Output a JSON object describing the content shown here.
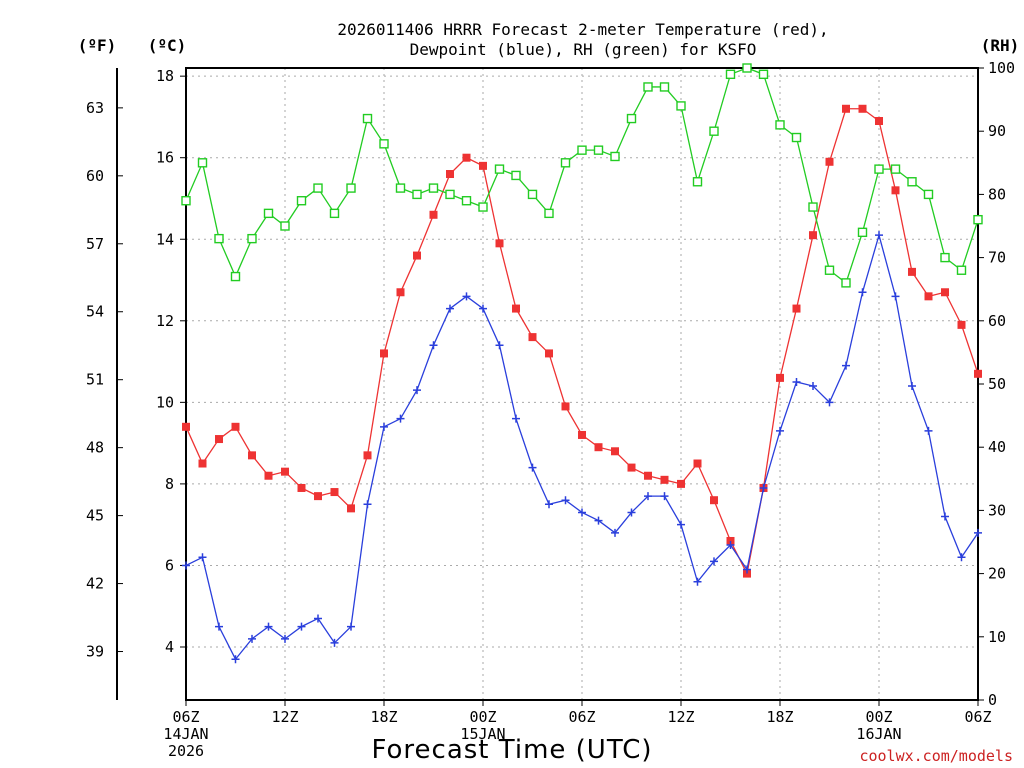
{
  "title_line1": "2026011406 HRRR Forecast 2-meter Temperature (red),",
  "title_line2": "Dewpoint (blue), RH (green) for KSFO",
  "unit_f": "(ºF)",
  "unit_c": "(ºC)",
  "unit_rh": "(RH)",
  "xlabel": "Forecast Time (UTC)",
  "credit": "coolwx.com/models",
  "x_ticks": [
    {
      "hour": 0,
      "lines": [
        "06Z",
        "14JAN",
        "2026"
      ]
    },
    {
      "hour": 6,
      "lines": [
        "12Z"
      ]
    },
    {
      "hour": 12,
      "lines": [
        "18Z"
      ]
    },
    {
      "hour": 18,
      "lines": [
        "00Z",
        "15JAN"
      ]
    },
    {
      "hour": 24,
      "lines": [
        "06Z"
      ]
    },
    {
      "hour": 30,
      "lines": [
        "12Z"
      ]
    },
    {
      "hour": 36,
      "lines": [
        "18Z"
      ]
    },
    {
      "hour": 42,
      "lines": [
        "00Z",
        "16JAN"
      ]
    },
    {
      "hour": 48,
      "lines": [
        "06Z"
      ]
    }
  ],
  "chart_data": {
    "type": "line",
    "x_hours_from_start": "0..48 hourly",
    "xlim": [
      0,
      48
    ],
    "ylim_c": [
      2.7,
      18.2
    ],
    "ylim_rh": [
      0,
      100
    ],
    "yticks_c": [
      4,
      6,
      8,
      10,
      12,
      14,
      16,
      18
    ],
    "yticks_f": [
      39,
      42,
      45,
      48,
      51,
      54,
      57,
      60,
      63
    ],
    "yticks_rh": [
      0,
      10,
      20,
      30,
      40,
      50,
      60,
      70,
      80,
      90,
      100
    ],
    "grid": true,
    "series": [
      {
        "name": "Temperature",
        "axis": "celsius",
        "color": "#ee3333",
        "marker": "filled-square",
        "values": [
          9.4,
          8.5,
          9.1,
          9.4,
          8.7,
          8.2,
          8.3,
          7.9,
          7.7,
          7.8,
          7.4,
          8.7,
          11.2,
          12.7,
          13.6,
          14.6,
          15.6,
          16.0,
          15.8,
          13.9,
          12.3,
          11.6,
          11.2,
          9.9,
          9.2,
          8.9,
          8.8,
          8.4,
          8.2,
          8.1,
          8.0,
          8.5,
          7.6,
          6.6,
          5.8,
          7.9,
          10.6,
          12.3,
          14.1,
          15.9,
          17.2,
          17.2,
          16.9,
          15.2,
          13.2,
          12.6,
          12.7,
          11.9,
          10.7
        ]
      },
      {
        "name": "Dewpoint",
        "axis": "celsius",
        "color": "#2a3fdc",
        "marker": "plus",
        "values": [
          6.0,
          6.2,
          4.5,
          3.7,
          4.2,
          4.5,
          4.2,
          4.5,
          4.7,
          4.1,
          4.5,
          7.5,
          9.4,
          9.6,
          10.3,
          11.4,
          12.3,
          12.6,
          12.3,
          11.4,
          9.6,
          8.4,
          7.5,
          7.6,
          7.3,
          7.1,
          6.8,
          7.3,
          7.7,
          7.7,
          7.0,
          5.6,
          6.1,
          6.5,
          5.9,
          7.9,
          9.3,
          10.5,
          10.4,
          10.0,
          10.9,
          12.7,
          14.1,
          12.6,
          10.4,
          9.3,
          7.2,
          6.2,
          6.8
        ]
      },
      {
        "name": "RH",
        "axis": "rh",
        "color": "#22cc22",
        "marker": "open-square",
        "values": [
          79.0,
          85.0,
          73.0,
          67.0,
          73.0,
          77.0,
          75.0,
          79.0,
          81.0,
          77.0,
          81.0,
          92.0,
          88.0,
          81.0,
          80.0,
          81.0,
          80.0,
          79.0,
          78.0,
          84.0,
          83.0,
          80.0,
          77.0,
          85.0,
          87.0,
          87.0,
          86.0,
          92.0,
          97.0,
          97.0,
          94.0,
          82.0,
          90.0,
          99.0,
          100.0,
          99.0,
          91.0,
          89.0,
          78.0,
          68.0,
          66.0,
          74.0,
          84.0,
          84.0,
          82.0,
          80.0,
          70.0,
          68.0,
          76.0
        ]
      }
    ]
  }
}
